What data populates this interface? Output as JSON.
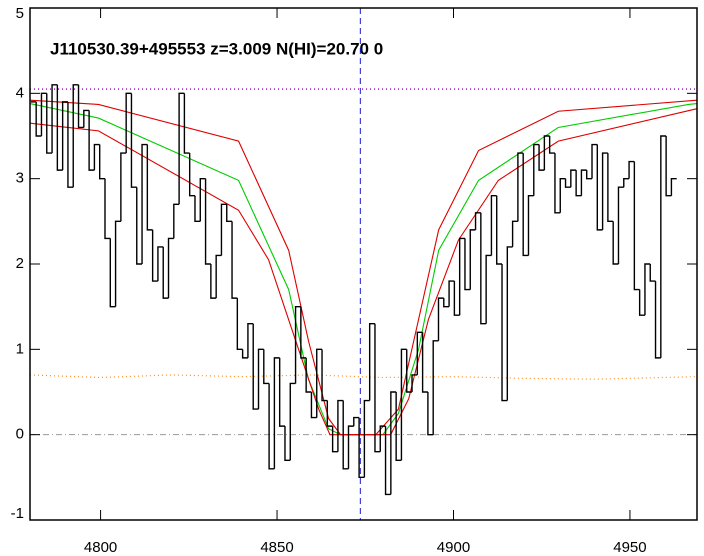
{
  "chart_data": {
    "type": "spectrum",
    "title": "J110530.39+495553 z=3.009 N(HI)=20.70 0",
    "x": [
      4781,
      4782.5,
      4784,
      4785.5,
      4787,
      4788.5,
      4790,
      4791.5,
      4793,
      4794.5,
      4796,
      4797.5,
      4799,
      4800.5,
      4802,
      4803.5,
      4805,
      4806.5,
      4808,
      4809.5,
      4811,
      4812.5,
      4814,
      4815.5,
      4817,
      4818.5,
      4820,
      4821.5,
      4823,
      4824.5,
      4826,
      4827.5,
      4829,
      4830.5,
      4832,
      4833.5,
      4835,
      4836.5,
      4838,
      4839.5,
      4841,
      4842.5,
      4844,
      4845.5,
      4847,
      4848.5,
      4850,
      4851.5,
      4853,
      4854.5,
      4856,
      4857.5,
      4859,
      4860.5,
      4862,
      4863.5,
      4865,
      4866.5,
      4868,
      4869.5,
      4871,
      4872.5,
      4874,
      4875.5,
      4877,
      4878.5,
      4880,
      4881.5,
      4883,
      4884.5,
      4886,
      4887.5,
      4889,
      4890.5,
      4892,
      4893.5,
      4895,
      4896.5,
      4898,
      4899.5,
      4901,
      4902.5,
      4904,
      4905.5,
      4907,
      4908.5,
      4910,
      4911.5,
      4913,
      4914.5,
      4916,
      4917.5,
      4919,
      4920.5,
      4922,
      4923.5,
      4925,
      4926.5,
      4928,
      4929.5,
      4931,
      4932.5,
      4934,
      4935.5,
      4937,
      4938.5,
      4940,
      4941.5,
      4943,
      4944.5,
      4946,
      4947.5,
      4949,
      4950.5,
      4952,
      4953.5,
      4955,
      4956.5,
      4958,
      4959.5,
      4961,
      4962.5
    ],
    "values": [
      3.9,
      3.5,
      4.0,
      3.3,
      4.1,
      3.1,
      3.9,
      2.9,
      4.1,
      3.6,
      3.8,
      3.1,
      3.4,
      3.0,
      2.3,
      1.5,
      2.5,
      3.3,
      4.0,
      2.9,
      2.0,
      3.4,
      2.4,
      1.8,
      2.2,
      1.6,
      2.3,
      2.7,
      4.0,
      3.3,
      2.8,
      2.5,
      3.0,
      2.0,
      1.6,
      2.1,
      2.7,
      2.5,
      1.6,
      1.0,
      0.9,
      1.3,
      0.3,
      1.0,
      0.6,
      -0.4,
      0.9,
      0.1,
      -0.3,
      0.6,
      1.5,
      0.9,
      0.5,
      0.2,
      1.0,
      0.4,
      0.1,
      -0.2,
      0.4,
      -0.4,
      0.1,
      0.2,
      -0.5,
      0.4,
      1.3,
      -0.2,
      0.1,
      -0.7,
      0.5,
      -0.3,
      1.0,
      0.5,
      0.7,
      1.2,
      0.5,
      0.0,
      1.1,
      1.6,
      1.5,
      1.8,
      1.4,
      2.3,
      1.7,
      2.4,
      2.6,
      1.3,
      2.1,
      2.8,
      2.0,
      0.4,
      2.2,
      2.5,
      3.3,
      2.1,
      2.8,
      3.4,
      3.1,
      3.5,
      3.3,
      2.6,
      3.0,
      2.9,
      3.1,
      2.8,
      3.1,
      3.0,
      3.4,
      2.4,
      3.3,
      2.5,
      2.0,
      2.9,
      3.0,
      3.2,
      1.7,
      1.4,
      2.0,
      1.8,
      0.9,
      3.5,
      2.8,
      3.0
    ],
    "color": "#000000",
    "series": [
      {
        "color": "#00cc00",
        "x": [
          4780,
          4799.4,
          4839.1,
          4853.3,
          4858.9,
          4864.6,
          4868,
          4880,
          4884.4,
          4890.1,
          4895.8,
          4907.1,
          4929.7,
          4966.6,
          4969
        ],
        "values": [
          3.88,
          3.71,
          2.98,
          1.7,
          0.65,
          0.07,
          0,
          0,
          0.25,
          1.0,
          2.16,
          2.98,
          3.6,
          3.87,
          3.88
        ]
      },
      {
        "color": "#dd0000",
        "x": [
          4780,
          4799.4,
          4839.1,
          4853.3,
          4858.9,
          4864.6,
          4868,
          4878,
          4884.4,
          4890.1,
          4895.8,
          4907.1,
          4929.7,
          4969
        ],
        "values": [
          3.92,
          3.87,
          3.44,
          2.16,
          1.1,
          0.19,
          0,
          0,
          0.3,
          1.35,
          2.4,
          3.33,
          3.79,
          3.92
        ]
      },
      {
        "color": "#dd0000",
        "x": [
          4780,
          4799.4,
          4839.1,
          4847.6,
          4856.1,
          4861.8,
          4865,
          4882.2,
          4887.3,
          4892.9,
          4901.4,
          4912.7,
          4929.7,
          4969
        ],
        "values": [
          3.65,
          3.56,
          2.63,
          2.05,
          1.0,
          0.3,
          0,
          0,
          0.42,
          1.35,
          2.28,
          2.98,
          3.44,
          3.82
        ]
      },
      {
        "color": "#ff8c1a",
        "style": "dotted",
        "x": [
          4780,
          4800,
          4820,
          4840,
          4860,
          4880,
          4900,
          4920,
          4940,
          4969
        ],
        "values": [
          0.7,
          0.67,
          0.7,
          0.68,
          0.7,
          0.67,
          0.68,
          0.66,
          0.65,
          0.68
        ]
      }
    ],
    "continuum": 4.05,
    "continuum_color": "#9900cc",
    "zero_line": 0,
    "zero_color": "#999999",
    "vline": 4873.6,
    "vline_color": "#1a1acc",
    "xlim": [
      4780,
      4969
    ],
    "ylim": [
      -1,
      5
    ],
    "xticks": [
      4800,
      4850,
      4900,
      4950
    ],
    "yticks": [
      -1,
      0,
      1,
      2,
      3,
      4,
      5
    ]
  }
}
